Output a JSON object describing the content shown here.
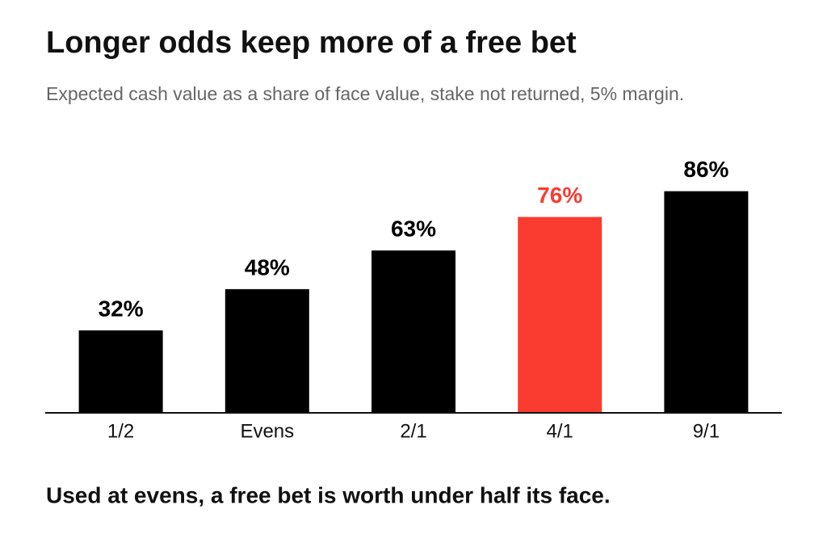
{
  "chart_data": {
    "type": "bar",
    "title": "Longer odds keep more of a free bet",
    "subtitle": "Expected cash value as a share of face value, stake not returned, 5% margin.",
    "categories": [
      "1/2",
      "Evens",
      "2/1",
      "4/1",
      "9/1"
    ],
    "values": [
      32,
      48,
      63,
      76,
      86
    ],
    "value_labels": [
      "32%",
      "48%",
      "63%",
      "76%",
      "86%"
    ],
    "colors": [
      "#000000",
      "#000000",
      "#000000",
      "#fa3b2f",
      "#000000"
    ],
    "ylim": [
      0,
      100
    ],
    "annotation": "Used at evens, a free bet is worth under half its face."
  }
}
